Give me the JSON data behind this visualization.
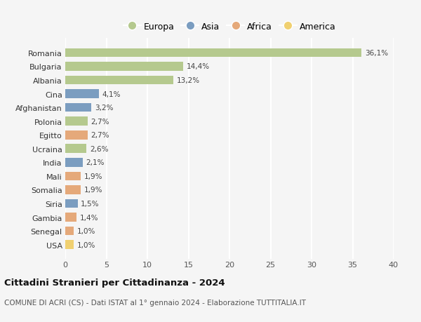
{
  "countries": [
    "Romania",
    "Bulgaria",
    "Albania",
    "Cina",
    "Afghanistan",
    "Polonia",
    "Egitto",
    "Ucraina",
    "India",
    "Mali",
    "Somalia",
    "Siria",
    "Gambia",
    "Senegal",
    "USA"
  ],
  "values": [
    36.1,
    14.4,
    13.2,
    4.1,
    3.2,
    2.7,
    2.7,
    2.6,
    2.1,
    1.9,
    1.9,
    1.5,
    1.4,
    1.0,
    1.0
  ],
  "labels": [
    "36,1%",
    "14,4%",
    "13,2%",
    "4,1%",
    "3,2%",
    "2,7%",
    "2,7%",
    "2,6%",
    "2,1%",
    "1,9%",
    "1,9%",
    "1,5%",
    "1,4%",
    "1,0%",
    "1,0%"
  ],
  "continents": [
    "Europa",
    "Europa",
    "Europa",
    "Asia",
    "Asia",
    "Europa",
    "Africa",
    "Europa",
    "Asia",
    "Africa",
    "Africa",
    "Asia",
    "Africa",
    "Africa",
    "America"
  ],
  "colors": {
    "Europa": "#b5c98e",
    "Asia": "#7b9dc0",
    "Africa": "#e5a97a",
    "America": "#f0d070"
  },
  "legend_order": [
    "Europa",
    "Asia",
    "Africa",
    "America"
  ],
  "title": "Cittadini Stranieri per Cittadinanza - 2024",
  "subtitle": "COMUNE DI ACRI (CS) - Dati ISTAT al 1° gennaio 2024 - Elaborazione TUTTITALIA.IT",
  "xlim": [
    0,
    40
  ],
  "xticks": [
    0,
    5,
    10,
    15,
    20,
    25,
    30,
    35,
    40
  ],
  "background_color": "#f5f5f5",
  "grid_color": "#ffffff",
  "bar_height": 0.65
}
